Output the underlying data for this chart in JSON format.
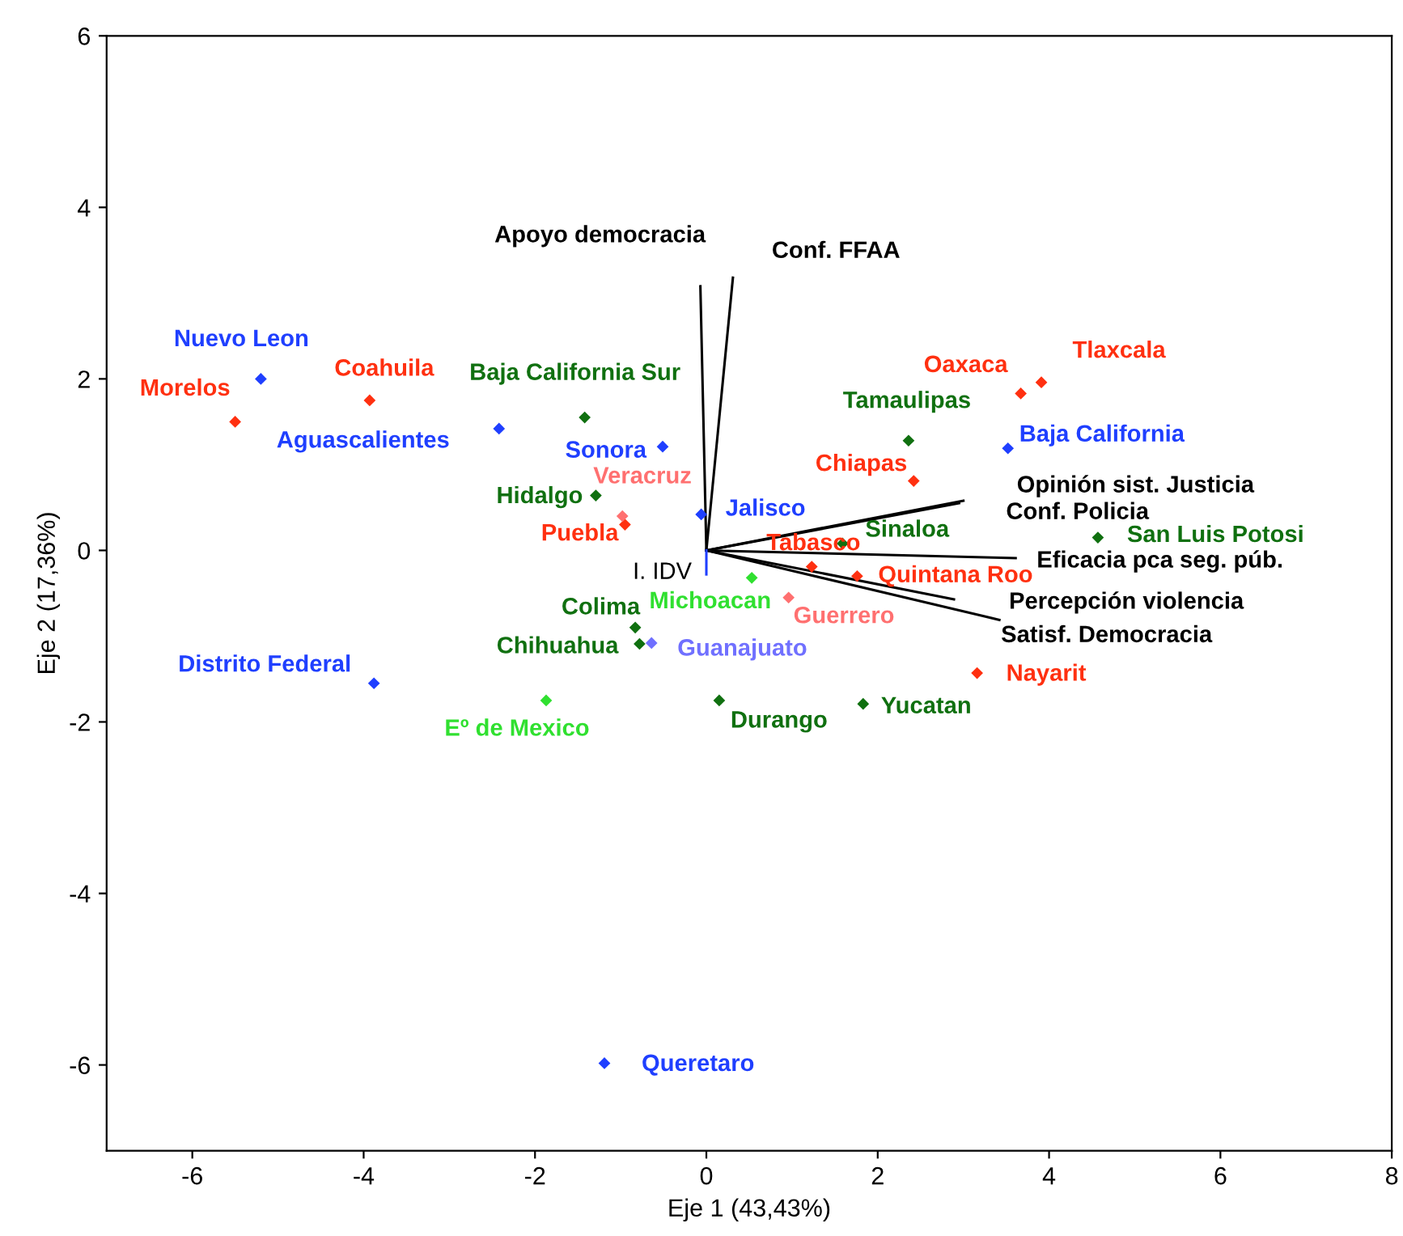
{
  "chart_data": {
    "type": "scatter",
    "xlabel": "Eje 1 (43,43%)",
    "ylabel": "Eje 2 (17,36%)",
    "xlim": [
      -7,
      8
    ],
    "ylim": [
      -7,
      6
    ],
    "xticks": [
      -6,
      -4,
      -2,
      0,
      2,
      4,
      6,
      8
    ],
    "yticks": [
      -6,
      -4,
      -2,
      0,
      2,
      4,
      6
    ],
    "grid": false,
    "marker": "diamond",
    "series": [
      {
        "color": "#1f3fff",
        "x": [
          -5.2,
          -2.42,
          -0.51,
          -0.06,
          -3.88,
          3.52,
          -1.19
        ],
        "values": [
          2.0,
          1.42,
          1.21,
          0.42,
          -1.55,
          1.19,
          -5.98
        ]
      },
      {
        "color": "#ff3010",
        "x": [
          -5.5,
          -3.93,
          -0.95,
          3.16,
          1.23,
          1.76,
          2.42,
          3.67,
          3.91
        ],
        "values": [
          1.5,
          1.75,
          0.3,
          -1.43,
          -0.19,
          -0.3,
          0.81,
          1.83,
          1.96
        ]
      },
      {
        "color": "#107010",
        "x": [
          -1.42,
          -1.29,
          -0.83,
          -0.78,
          0.15,
          1.83,
          1.59,
          2.36,
          4.57
        ],
        "values": [
          1.55,
          0.64,
          -0.9,
          -1.09,
          -1.75,
          -1.79,
          0.08,
          1.28,
          0.15
        ]
      },
      {
        "color": "#30e030",
        "x": [
          0.53,
          -1.87
        ],
        "values": [
          -0.32,
          -1.75
        ]
      },
      {
        "color": "#ff7070",
        "x": [
          -0.98,
          0.96
        ],
        "values": [
          0.4,
          -0.55
        ]
      },
      {
        "color": "#7070ff",
        "x": [
          -0.64
        ],
        "values": [
          -1.08
        ]
      },
      {
        "type": "line",
        "marker": "none",
        "color": "#000000",
        "x": [
          0,
          -0.07
        ],
        "values": [
          0,
          3.08
        ]
      },
      {
        "type": "line",
        "marker": "none",
        "color": "#000000",
        "x": [
          0,
          0.31
        ],
        "values": [
          0,
          3.18
        ]
      },
      {
        "type": "line",
        "marker": "none",
        "color": "#000000",
        "x": [
          0,
          3.0
        ],
        "values": [
          0,
          0.58
        ]
      },
      {
        "type": "line",
        "marker": "none",
        "color": "#000000",
        "x": [
          0,
          2.95
        ],
        "values": [
          0,
          0.55
        ]
      },
      {
        "type": "line",
        "marker": "none",
        "color": "#000000",
        "x": [
          0,
          3.61
        ],
        "values": [
          0,
          -0.09
        ]
      },
      {
        "type": "line",
        "marker": "none",
        "color": "#000000",
        "x": [
          0,
          2.89
        ],
        "values": [
          0,
          -0.57
        ]
      },
      {
        "type": "line",
        "marker": "none",
        "color": "#000000",
        "x": [
          0,
          3.42
        ],
        "values": [
          0,
          -0.81
        ]
      },
      {
        "type": "line",
        "marker": "none",
        "color": "#1f3fff",
        "x": [
          0,
          0
        ],
        "values": [
          0,
          -0.28
        ]
      }
    ],
    "annotations": [
      {
        "text": "Nuevo Leon",
        "x": -5.2,
        "y": 2.0
      },
      {
        "text": "Aguascalientes",
        "x": -2.42,
        "y": 1.42
      },
      {
        "text": "Sonora",
        "x": -0.51,
        "y": 1.21
      },
      {
        "text": "Jalisco",
        "x": -0.06,
        "y": 0.42
      },
      {
        "text": "Distrito Federal",
        "x": -3.88,
        "y": -1.55
      },
      {
        "text": "Baja California",
        "x": 3.52,
        "y": 1.19
      },
      {
        "text": "Queretaro",
        "x": -1.19,
        "y": -5.98
      },
      {
        "text": "Morelos",
        "x": -5.5,
        "y": 1.5
      },
      {
        "text": "Coahuila",
        "x": -3.93,
        "y": 1.75
      },
      {
        "text": "Puebla",
        "x": -0.95,
        "y": 0.3
      },
      {
        "text": "Nayarit",
        "x": 3.16,
        "y": -1.43
      },
      {
        "text": "Tabasco",
        "x": 1.23,
        "y": -0.19
      },
      {
        "text": "Quintana Roo",
        "x": 1.76,
        "y": -0.3
      },
      {
        "text": "Chiapas",
        "x": 2.42,
        "y": 0.81
      },
      {
        "text": "Oaxaca",
        "x": 3.67,
        "y": 1.83
      },
      {
        "text": "Tlaxcala",
        "x": 3.91,
        "y": 1.96
      },
      {
        "text": "Baja California Sur",
        "x": -1.42,
        "y": 1.55
      },
      {
        "text": "Hidalgo",
        "x": -1.29,
        "y": 0.64
      },
      {
        "text": "Colima",
        "x": -0.83,
        "y": -0.9
      },
      {
        "text": "Chihuahua",
        "x": -0.78,
        "y": -1.09
      },
      {
        "text": "Durango",
        "x": 0.15,
        "y": -1.75
      },
      {
        "text": "Yucatan",
        "x": 1.83,
        "y": -1.79
      },
      {
        "text": "Sinaloa",
        "x": 1.59,
        "y": 0.08
      },
      {
        "text": "Tamaulipas",
        "x": 2.36,
        "y": 1.28
      },
      {
        "text": "San Luis Potosi",
        "x": 4.57,
        "y": 0.15
      },
      {
        "text": "Michoacan",
        "x": 0.53,
        "y": -0.32
      },
      {
        "text": "Eº de Mexico",
        "x": -1.87,
        "y": -1.75
      },
      {
        "text": "Veracruz",
        "x": -0.98,
        "y": 0.4
      },
      {
        "text": "Guerrero",
        "x": 0.96,
        "y": -0.55
      },
      {
        "text": "Guanajuato",
        "x": -0.64,
        "y": -1.08
      },
      {
        "text": "Apoyo democracia",
        "x": -0.07,
        "y": 3.08
      },
      {
        "text": "Conf. FFAA",
        "x": 0.31,
        "y": 3.18
      },
      {
        "text": "Opinión sist. Justicia",
        "x": 3.0,
        "y": 0.58
      },
      {
        "text": "Conf. Policia",
        "x": 2.95,
        "y": 0.55
      },
      {
        "text": "Eficacia pca seg. púb.",
        "x": 3.61,
        "y": -0.09
      },
      {
        "text": "Percepción violencia",
        "x": 2.89,
        "y": -0.57
      },
      {
        "text": "Satisf. Democracia",
        "x": 3.42,
        "y": -0.81
      },
      {
        "text": "I. IDV",
        "x": 0,
        "y": -0.28
      }
    ]
  }
}
